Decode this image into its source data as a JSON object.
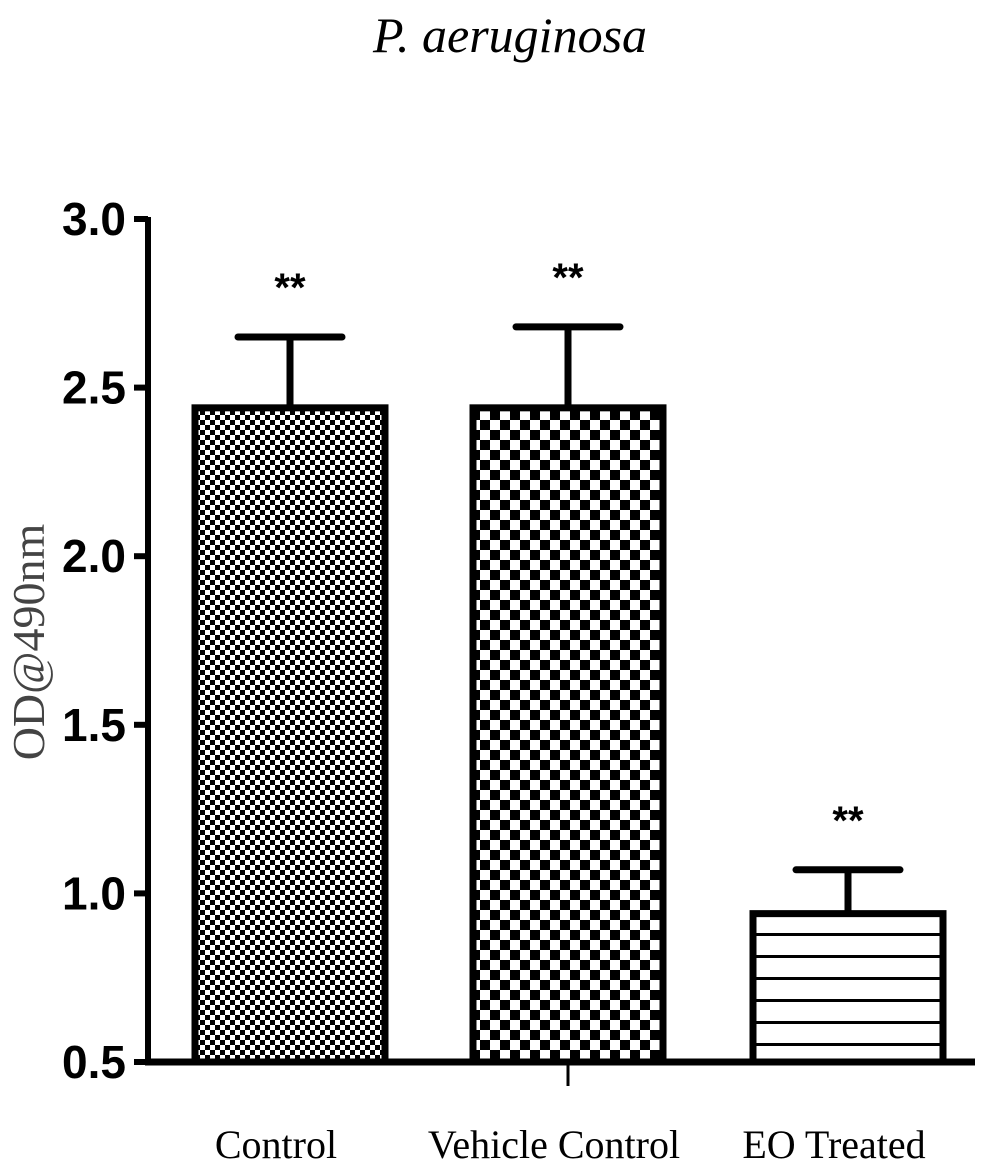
{
  "chart_data": {
    "type": "bar",
    "title": "P. aeruginosa",
    "xlabel": "",
    "ylabel": "OD@490nm",
    "ylim": [
      0.5,
      3.0
    ],
    "yticks": [
      "0.5",
      "1.0",
      "1.5",
      "2.0",
      "2.5",
      "3.0"
    ],
    "categories": [
      "Control",
      "Vehicle Control",
      "EO Treated"
    ],
    "values": [
      2.44,
      2.44,
      0.94
    ],
    "error": [
      0.21,
      0.24,
      0.13
    ],
    "annotations": [
      "**",
      "**",
      "**"
    ],
    "patterns": [
      "fine-checker",
      "coarse-checker",
      "horizontal-lines"
    ],
    "grid": false,
    "colors": {
      "bar_fill": "#ffffff",
      "pattern": "#000000",
      "axis": "#000000"
    }
  }
}
